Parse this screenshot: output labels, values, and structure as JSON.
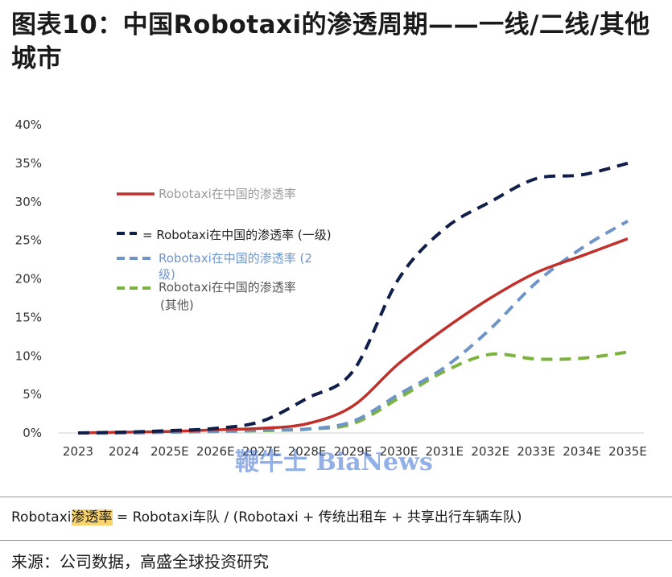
{
  "title": "图表10：中国Robotaxi的渗透周期——一线/二线/其他城市",
  "colors": {
    "tier1": "#0f1f4a",
    "tier2": "#6f95c8",
    "other": "#7cb33e",
    "red": "#c0312b",
    "watermark": "#3b6fd6",
    "highlight": "#f9d36b"
  },
  "chart_data": {
    "type": "line",
    "x": [
      "2023",
      "2024",
      "2025E",
      "2026E",
      "2027E",
      "2028E",
      "2029E",
      "2030E",
      "2031E",
      "2032E",
      "2033E",
      "2034E",
      "2035E"
    ],
    "ylim": [
      0,
      40
    ],
    "yticks": [
      "0%",
      "5%",
      "10%",
      "15%",
      "20%",
      "25%",
      "30%",
      "35%",
      "40%"
    ],
    "legend_position": "top-left",
    "series": [
      {
        "name": "Robotaxi在中国的渗透率",
        "style": "solid",
        "color": "#c0312b",
        "values": [
          0,
          0.1,
          0.2,
          0.4,
          0.6,
          1.2,
          3.5,
          9.0,
          13.5,
          17.5,
          20.8,
          23.0,
          25.2
        ]
      },
      {
        "name": "= Robotaxi在中国的渗透率 (一级)",
        "style": "dash",
        "color": "#0f1f4a",
        "values": [
          0,
          0.1,
          0.3,
          0.6,
          1.5,
          4.5,
          8.0,
          20.0,
          26.5,
          30.0,
          33.0,
          33.5,
          35.0
        ]
      },
      {
        "name": "Robotaxi在中国的渗透率 (2级)",
        "style": "dash",
        "color": "#6f95c8",
        "values": [
          0,
          0,
          0.1,
          0.2,
          0.4,
          0.5,
          1.5,
          5.0,
          8.5,
          13.5,
          19.5,
          24.0,
          27.5
        ]
      },
      {
        "name": "Robotaxi在中国的渗透率 (其他)",
        "style": "dash",
        "color": "#7cb33e",
        "values": [
          0,
          0,
          0.1,
          0.2,
          0.3,
          0.5,
          1.2,
          4.5,
          8.0,
          10.2,
          9.6,
          9.7,
          10.5
        ]
      }
    ]
  },
  "legend": {
    "red_label": "Robotaxi在中国的渗透率",
    "tier1_label": "= Robotaxi在中国的渗透率 (一级)",
    "tier2_label_line1": "Robotaxi在中国的渗透率 (2",
    "tier2_label_line2": "级)",
    "other_label_line1": "Robotaxi在中国的渗透率",
    "other_label_line2": "(其他)"
  },
  "watermark": "鞭牛士 BiaNews",
  "formula": {
    "prefix": "Robotaxi",
    "highlight": "渗透率",
    "rest": " = Robotaxi车队 / (Robotaxi + 传统出租车 + 共享出行车辆车队)"
  },
  "source": "来源：公司数据，高盛全球投资研究"
}
